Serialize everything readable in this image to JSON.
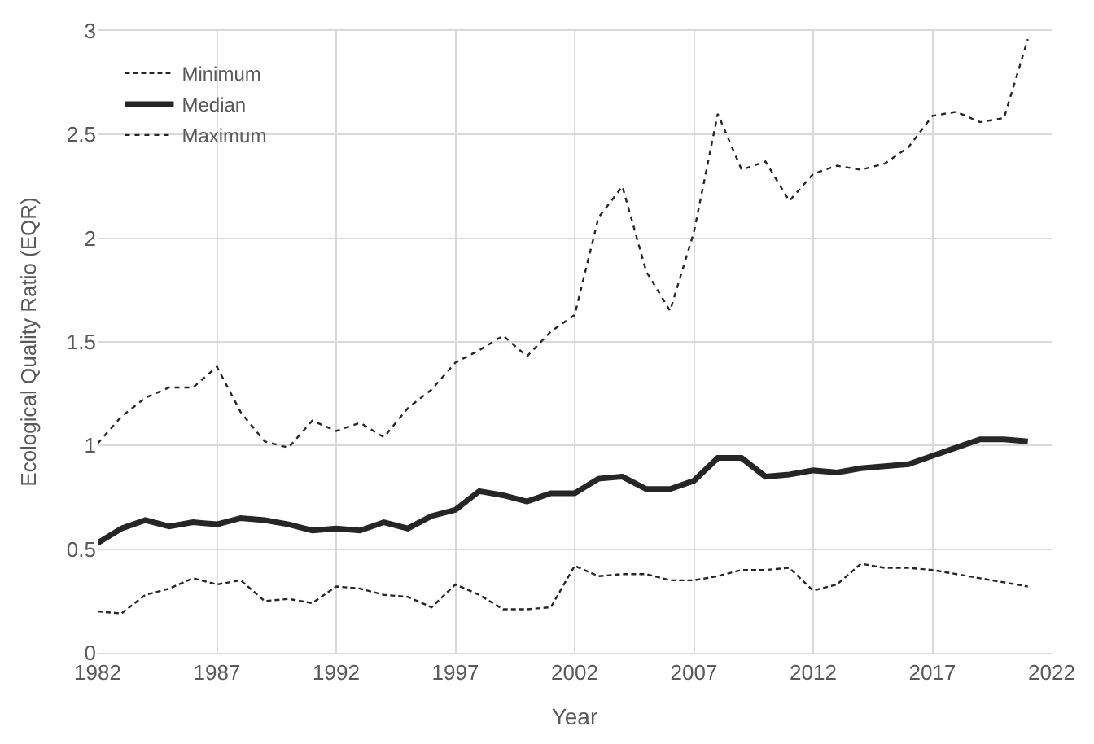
{
  "chart_data": {
    "type": "line",
    "xlabel": "Year",
    "ylabel": "Ecological Quality Ratio (EQR)",
    "x": [
      1982,
      1983,
      1984,
      1985,
      1986,
      1987,
      1988,
      1989,
      1990,
      1991,
      1992,
      1993,
      1994,
      1995,
      1996,
      1997,
      1998,
      1999,
      2000,
      2001,
      2002,
      2003,
      2004,
      2005,
      2006,
      2007,
      2008,
      2009,
      2010,
      2011,
      2012,
      2013,
      2014,
      2015,
      2016,
      2017,
      2018,
      2019,
      2020,
      2021
    ],
    "series": [
      {
        "name": "Minimum",
        "color": "#262626",
        "line_style": "dashed",
        "values": [
          0.2,
          0.19,
          0.28,
          0.31,
          0.36,
          0.33,
          0.35,
          0.25,
          0.26,
          0.24,
          0.32,
          0.31,
          0.28,
          0.27,
          0.22,
          0.33,
          0.28,
          0.21,
          0.21,
          0.22,
          0.42,
          0.37,
          0.38,
          0.38,
          0.35,
          0.35,
          0.37,
          0.4,
          0.4,
          0.41,
          0.3,
          0.33,
          0.43,
          0.41,
          0.41,
          0.4,
          0.38,
          0.36,
          0.34,
          0.32
        ]
      },
      {
        "name": "Median",
        "color": "#262626",
        "line_style": "solid",
        "values": [
          0.53,
          0.6,
          0.64,
          0.61,
          0.63,
          0.62,
          0.65,
          0.64,
          0.62,
          0.59,
          0.6,
          0.59,
          0.63,
          0.6,
          0.66,
          0.69,
          0.78,
          0.76,
          0.73,
          0.77,
          0.77,
          0.84,
          0.85,
          0.79,
          0.79,
          0.83,
          0.94,
          0.94,
          0.85,
          0.86,
          0.88,
          0.87,
          0.89,
          0.9,
          0.91,
          0.95,
          0.99,
          1.03,
          1.03,
          1.02
        ]
      },
      {
        "name": "Maximum",
        "color": "#262626",
        "line_style": "dotted",
        "values": [
          1.01,
          1.14,
          1.23,
          1.28,
          1.28,
          1.38,
          1.16,
          1.02,
          0.99,
          1.12,
          1.07,
          1.11,
          1.04,
          1.18,
          1.27,
          1.4,
          1.46,
          1.53,
          1.43,
          1.55,
          1.63,
          2.1,
          2.25,
          1.84,
          1.65,
          2.03,
          2.6,
          2.33,
          2.37,
          2.18,
          2.31,
          2.35,
          2.33,
          2.36,
          2.44,
          2.59,
          2.61,
          2.56,
          2.58,
          2.96
        ]
      }
    ],
    "xlim": [
      1982,
      2022
    ],
    "xticks": [
      1982,
      1987,
      1992,
      1997,
      2002,
      2007,
      2012,
      2017,
      2022
    ],
    "ylim": [
      0,
      3
    ],
    "yticks": [
      0,
      0.5,
      1,
      1.5,
      2,
      2.5,
      3
    ],
    "grid": true,
    "legend": "top left",
    "marker": "none"
  }
}
